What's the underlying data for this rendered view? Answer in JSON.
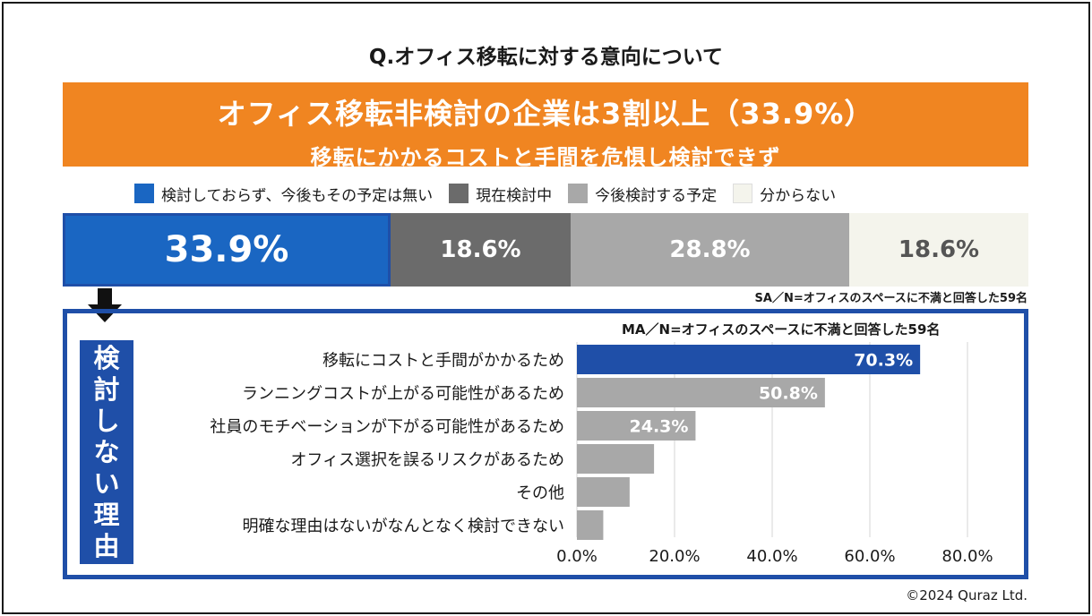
{
  "question": "Q.オフィス移転に対する意向について",
  "banner": {
    "line1": "オフィス移転非検討の企業は3割以上（33.9%）",
    "line2": "移転にかかるコストと手間を危惧し検討できず"
  },
  "legend": [
    {
      "label": "検討しておらず、今後もその予定は無い",
      "color": "#1a66c2"
    },
    {
      "label": "現在検討中",
      "color": "#6b6b6b"
    },
    {
      "label": "今後検討する予定",
      "color": "#a8a8a8"
    },
    {
      "label": "分からない",
      "color": "#f4f4ec"
    }
  ],
  "sa_note": "SA／N=オフィスのスペースに不満と回答した59名",
  "ma_note": "MA／N=オフィスのスペースに不満と回答した59名",
  "side_label": "検討しない理由",
  "footer": "©2024 Quraz Ltd.",
  "chart_data": [
    {
      "type": "stacked_bar",
      "series": [
        {
          "name": "検討しておらず、今後もその予定は無い",
          "value": 33.9,
          "label": "33.9%",
          "color": "#1a66c2"
        },
        {
          "name": "現在検討中",
          "value": 18.6,
          "label": "18.6%",
          "color": "#6b6b6b"
        },
        {
          "name": "今後検討する予定",
          "value": 28.8,
          "label": "28.8%",
          "color": "#a8a8a8"
        },
        {
          "name": "分からない",
          "value": 18.6,
          "label": "18.6%",
          "color": "#f4f4ec"
        }
      ]
    },
    {
      "type": "bar",
      "orientation": "horizontal",
      "categories": [
        "移転にコストと手間がかかるため",
        "ランニングコストが上がる可能性があるため",
        "社員のモチベーションが下がる可能性があるため",
        "オフィス選択を誤るリスクがあるため",
        "その他",
        "明確な理由はないがなんとなく検討できない"
      ],
      "values": [
        70.3,
        50.8,
        24.3,
        15.8,
        10.8,
        5.4
      ],
      "value_labels": [
        "70.3%",
        "50.8%",
        "24.3%",
        "",
        "",
        ""
      ],
      "xlim": [
        0,
        80
      ],
      "xticks": [
        "0.0%",
        "20.0%",
        "40.0%",
        "60.0%",
        "80.0%"
      ],
      "highlight_color": "#1f4fa8",
      "bar_color": "#a8a8a8"
    }
  ]
}
